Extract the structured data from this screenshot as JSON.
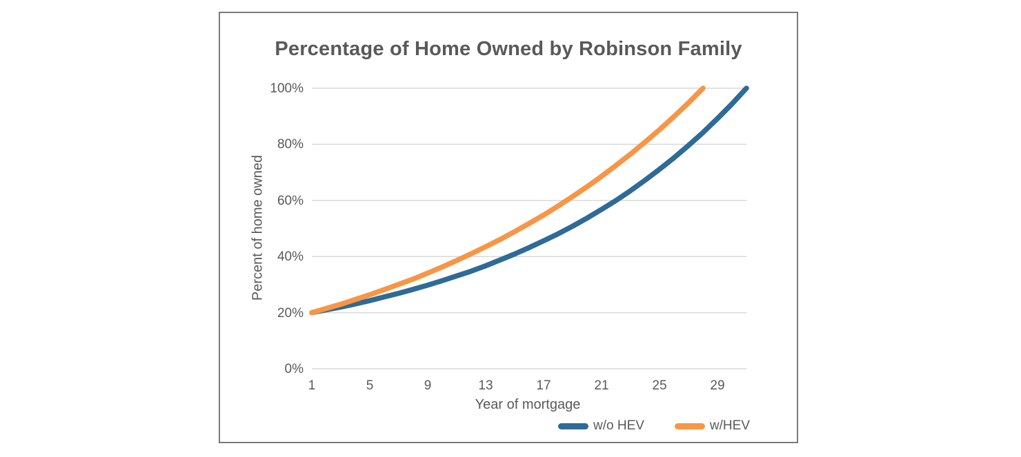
{
  "chart_data": {
    "type": "line",
    "title": "Percentage of Home Owned by Robinson Family",
    "xlabel": "Year of mortgage",
    "ylabel": "Percent of home owned",
    "x_ticks": [
      1,
      5,
      9,
      13,
      17,
      21,
      25,
      29
    ],
    "y_tick_labels": [
      "0%",
      "20%",
      "40%",
      "60%",
      "80%",
      "100%"
    ],
    "y_tick_values": [
      0,
      20,
      40,
      60,
      80,
      100
    ],
    "xlim": [
      1,
      31
    ],
    "ylim": [
      0,
      100
    ],
    "grid": "horizontal",
    "gridline_color": "#d9d9d9",
    "text_color": "#595959",
    "legend_position": "bottom-right",
    "series": [
      {
        "name": "w/o HEV",
        "color": "#2e6b96",
        "x": [
          1,
          2,
          3,
          4,
          5,
          6,
          7,
          8,
          9,
          10,
          11,
          12,
          13,
          14,
          15,
          16,
          17,
          18,
          19,
          20,
          21,
          22,
          23,
          24,
          25,
          26,
          27,
          28,
          29,
          30,
          31
        ],
        "values": [
          20.0,
          21.0,
          22.0,
          23.1,
          24.3,
          25.6,
          26.9,
          28.3,
          29.8,
          31.4,
          33.1,
          34.8,
          36.7,
          38.8,
          40.9,
          43.2,
          45.6,
          48.1,
          50.8,
          53.7,
          56.8,
          60.0,
          63.5,
          67.2,
          71.1,
          75.2,
          79.6,
          84.2,
          89.2,
          94.4,
          100.0
        ]
      },
      {
        "name": "w/HEV",
        "color": "#f79646",
        "x": [
          1,
          2,
          3,
          4,
          5,
          6,
          7,
          8,
          9,
          10,
          11,
          12,
          13,
          14,
          15,
          16,
          17,
          18,
          19,
          20,
          21,
          22,
          23,
          24,
          25,
          26,
          27,
          28
        ],
        "values": [
          20.0,
          21.5,
          23.0,
          24.7,
          26.4,
          28.2,
          30.1,
          32.0,
          34.1,
          36.3,
          38.6,
          41.0,
          43.5,
          46.1,
          48.9,
          51.8,
          54.8,
          58.0,
          61.4,
          64.9,
          68.6,
          72.5,
          76.5,
          80.8,
          85.2,
          89.9,
          94.8,
          100.0
        ]
      }
    ]
  }
}
